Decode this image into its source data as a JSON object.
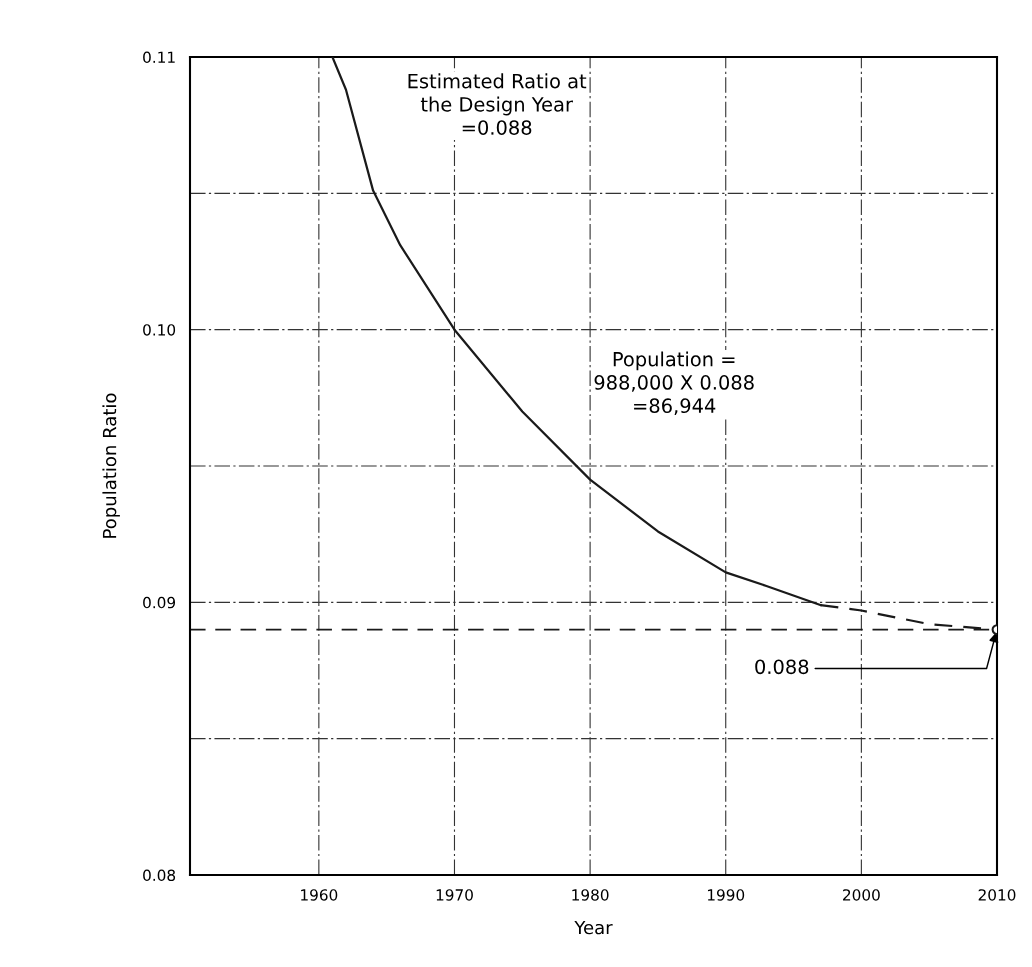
{
  "chart_data": {
    "type": "line",
    "xlabel": "Year",
    "ylabel": "Population Ratio",
    "xlim": [
      1950.5,
      2010
    ],
    "xticks": [
      1960,
      1970,
      1980,
      1990,
      2000,
      2010
    ],
    "ylim": [
      0.08,
      0.11
    ],
    "yticks": [
      0.08,
      {
        "value": 0.085,
        "label": null
      },
      0.09,
      {
        "value": 0.095,
        "label": null
      },
      {
        "value": 0.1,
        "label": "0.10"
      },
      {
        "value": 0.105,
        "label": null
      },
      0.11
    ],
    "grid": true,
    "series": [
      {
        "color": "#1a1a1a",
        "line_style": "solid",
        "marker": "none",
        "x": [
          1961,
          1962,
          1964,
          1966,
          1970,
          1975,
          1980,
          1985,
          1990,
          1993,
          1997
        ],
        "values": [
          0.11,
          0.1088,
          0.1051,
          0.1031,
          0.1,
          0.097,
          0.0945,
          0.0926,
          0.0911,
          0.0906,
          0.0899
        ]
      },
      {
        "color": "#1a1a1a",
        "line_style": "dashed",
        "marker": "none",
        "x": [
          1997,
          2000,
          2005,
          2010
        ],
        "values": [
          0.0899,
          0.0897,
          0.0892,
          0.089
        ]
      },
      {
        "type": "scatter",
        "color": "#1a1a1a",
        "marker": "circle",
        "x": [
          2010
        ],
        "values": [
          0.089
        ]
      }
    ],
    "ref_lines": [
      {
        "axis": "y",
        "value": 0.089,
        "color": "#1a1a1a",
        "line_style": "dashed"
      }
    ],
    "annotations": [
      "Estimated Ratio at\nthe Design Year\n=0.088",
      "Population =\n988,000 X 0.088\n=86,944",
      {
        "text": "0.088",
        "x": 2010,
        "y": 0.089
      }
    ]
  }
}
